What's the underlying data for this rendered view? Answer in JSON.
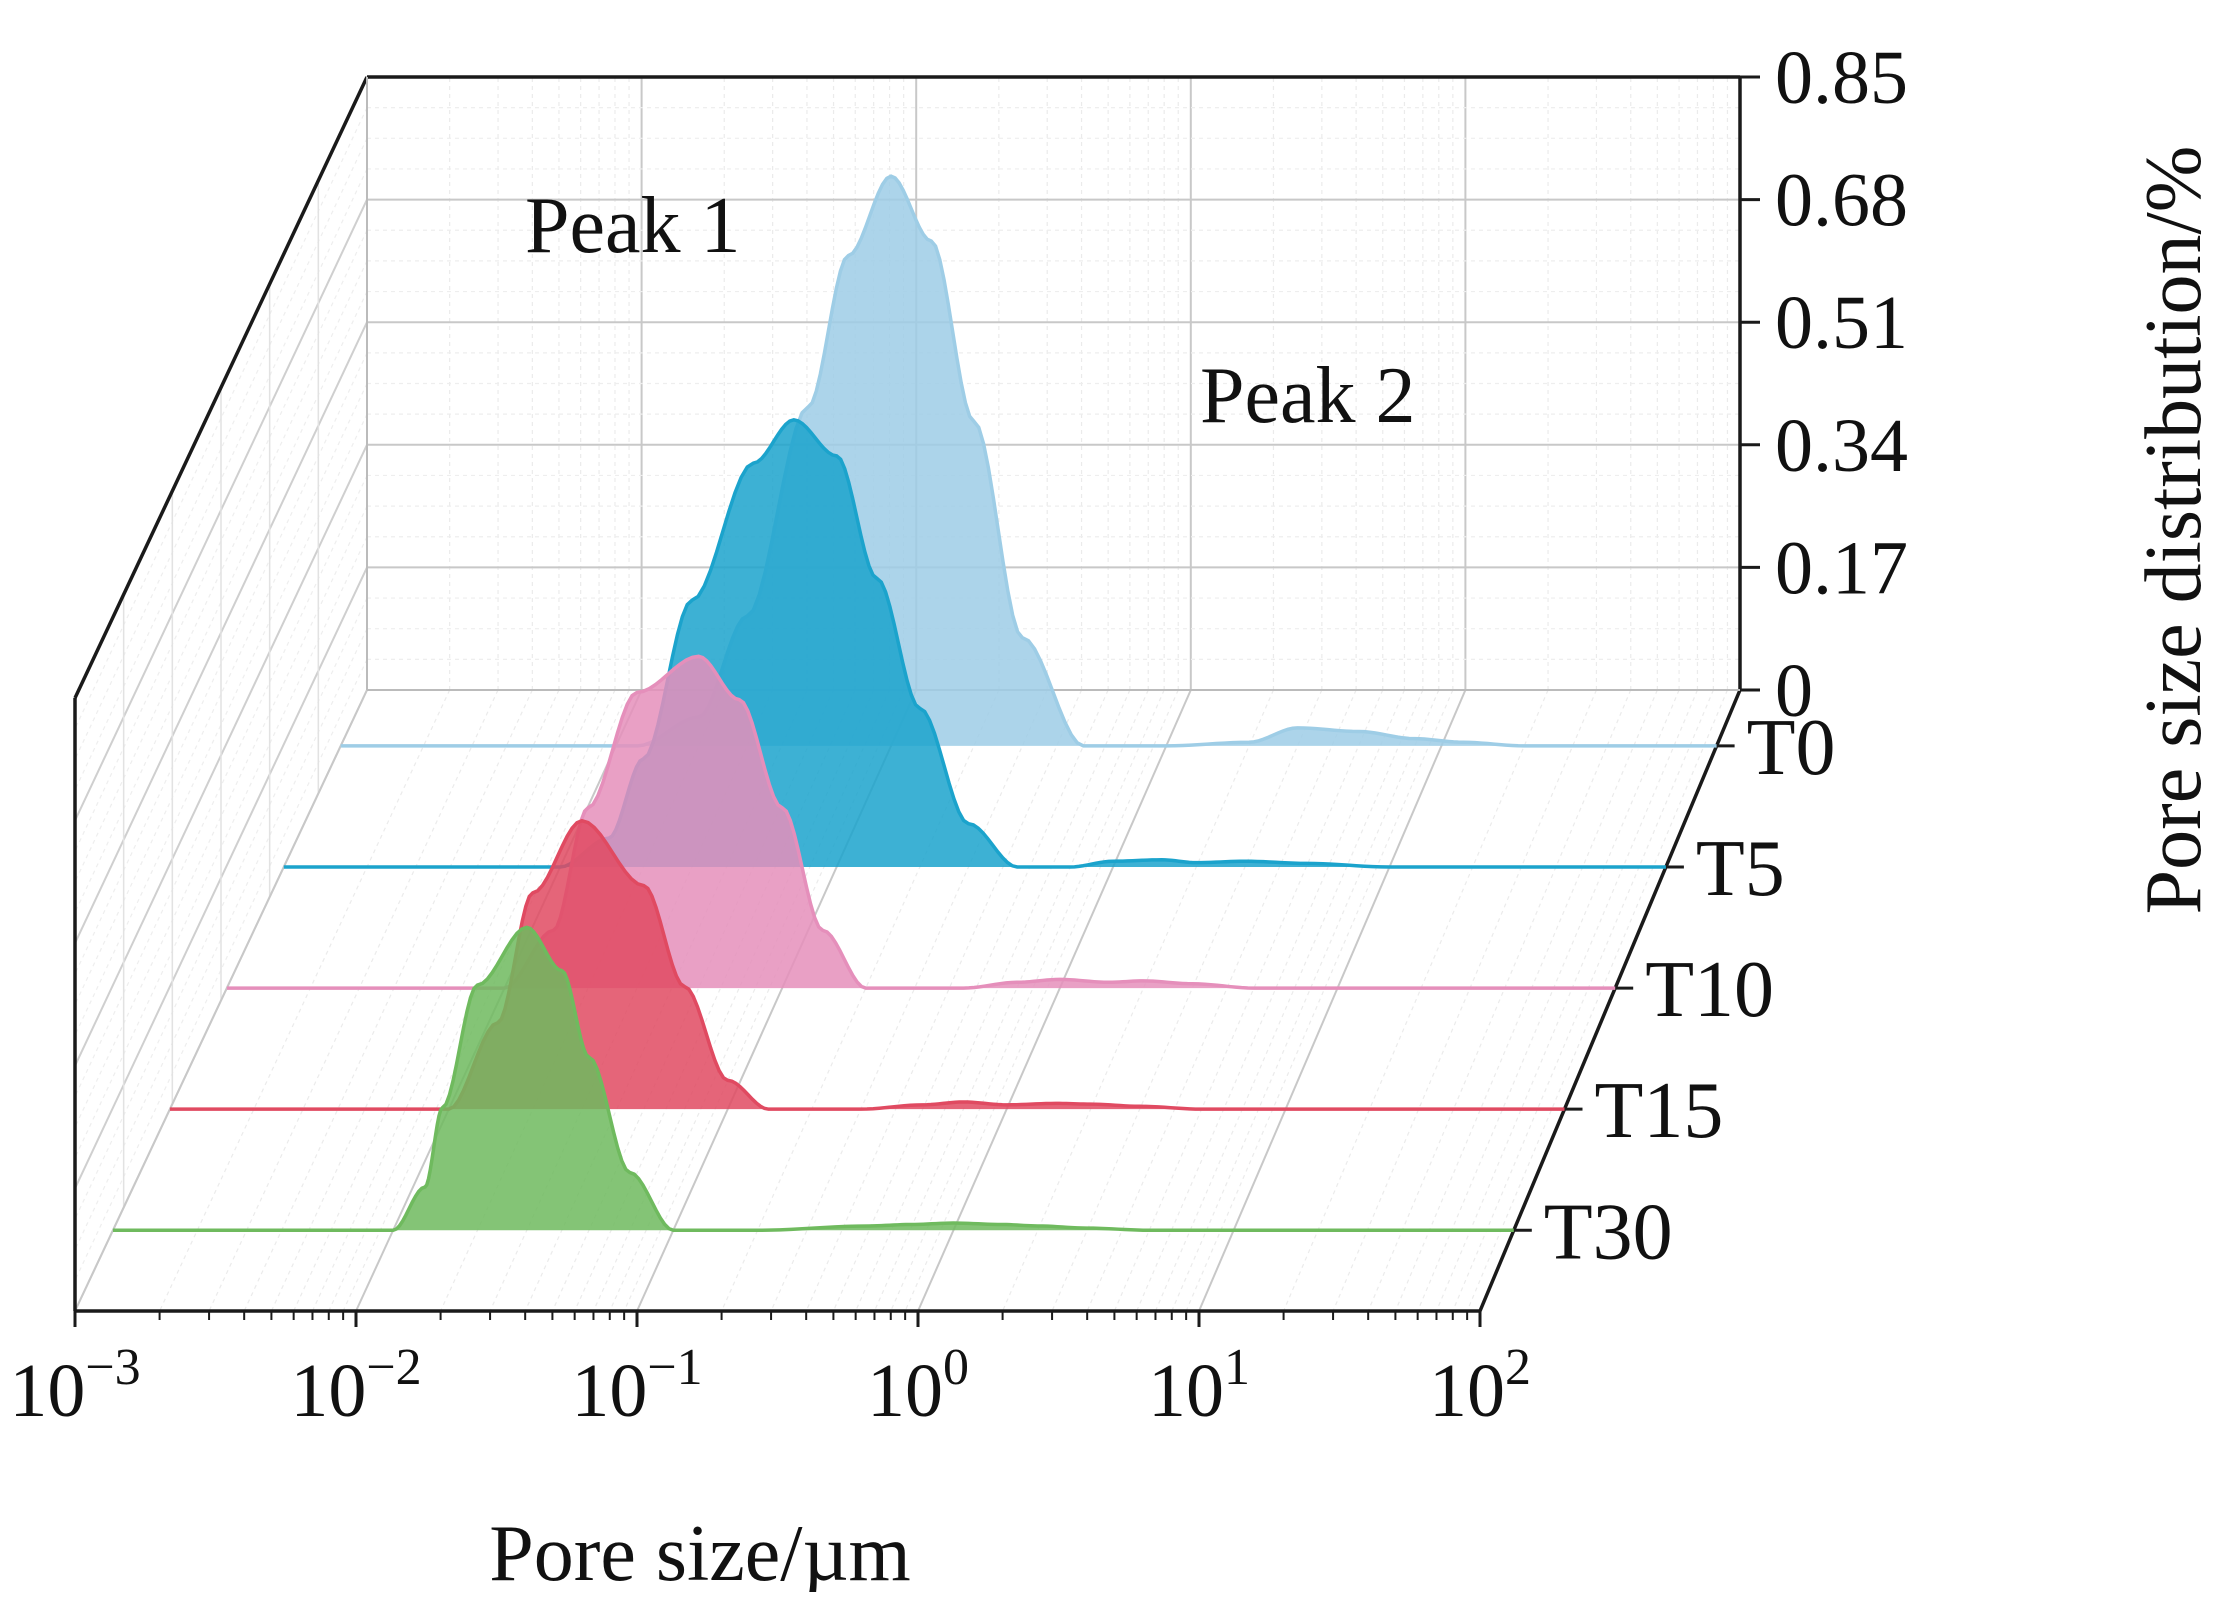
{
  "chart_data": {
    "type": "area",
    "subtype": "3d-waterfall",
    "xlabel": "Pore size/µm",
    "ylabel": "Pore size distribution/%",
    "x_scale": "log",
    "xlim": [
      0.001,
      100
    ],
    "ylim": [
      0,
      0.85
    ],
    "x_ticks": [
      {
        "value": 0.001,
        "base": "10",
        "exp": "−3"
      },
      {
        "value": 0.01,
        "base": "10",
        "exp": "−2"
      },
      {
        "value": 0.1,
        "base": "10",
        "exp": "−1"
      },
      {
        "value": 1,
        "base": "10",
        "exp": "0"
      },
      {
        "value": 10,
        "base": "10",
        "exp": "1"
      },
      {
        "value": 100,
        "base": "10",
        "exp": "2"
      }
    ],
    "y_ticks": [
      "0",
      "0.17",
      "0.34",
      "0.51",
      "0.68",
      "0.85"
    ],
    "grid": true,
    "annotations": [
      "Peak 1",
      "Peak 2"
    ],
    "series": [
      {
        "name": "T0",
        "color": "#9ecde6",
        "x": [
          0.012,
          0.02,
          0.03,
          0.05,
          0.07,
          0.1,
          0.14,
          0.2,
          0.3,
          0.5,
          0.7,
          1.0,
          2,
          3,
          5,
          8,
          12,
          20,
          40,
          100
        ],
        "y": [
          0,
          0.04,
          0.18,
          0.47,
          0.68,
          0.79,
          0.7,
          0.45,
          0.15,
          0,
          0,
          0,
          0.005,
          0.025,
          0.02,
          0.01,
          0.005,
          0,
          0,
          0
        ]
      },
      {
        "name": "T5",
        "color": "#1ba3cc",
        "x": [
          0.01,
          0.015,
          0.02,
          0.03,
          0.05,
          0.07,
          0.1,
          0.14,
          0.2,
          0.3,
          0.45,
          0.7,
          1.0,
          1.5,
          2,
          3,
          5,
          10,
          100
        ],
        "y": [
          0,
          0.04,
          0.15,
          0.37,
          0.56,
          0.62,
          0.57,
          0.4,
          0.22,
          0.06,
          0,
          0,
          0.008,
          0.01,
          0.006,
          0.008,
          0.005,
          0,
          0
        ]
      },
      {
        "name": "T10",
        "color": "#e58fbb",
        "x": [
          0.01,
          0.015,
          0.02,
          0.03,
          0.05,
          0.07,
          0.1,
          0.14,
          0.2,
          0.3,
          0.45,
          0.7,
          1.0,
          1.5,
          2,
          3,
          5,
          100
        ],
        "y": [
          0,
          0.08,
          0.25,
          0.41,
          0.46,
          0.4,
          0.25,
          0.08,
          0,
          0,
          0,
          0.008,
          0.012,
          0.008,
          0.01,
          0.006,
          0,
          0
        ]
      },
      {
        "name": "T15",
        "color": "#e04a61",
        "x": [
          0.01,
          0.015,
          0.02,
          0.03,
          0.05,
          0.07,
          0.1,
          0.14,
          0.2,
          0.3,
          0.5,
          0.7,
          1.0,
          1.5,
          2,
          3,
          5,
          100
        ],
        "y": [
          0,
          0.12,
          0.3,
          0.4,
          0.31,
          0.17,
          0.04,
          0,
          0,
          0,
          0.006,
          0.01,
          0.006,
          0.008,
          0.007,
          0.004,
          0,
          0
        ]
      },
      {
        "name": "T30",
        "color": "#6fba5e",
        "x": [
          0.01,
          0.013,
          0.015,
          0.02,
          0.03,
          0.04,
          0.05,
          0.07,
          0.1,
          0.2,
          0.5,
          0.7,
          1.0,
          1.5,
          2,
          3,
          5,
          100
        ],
        "y": [
          0,
          0.06,
          0.17,
          0.34,
          0.42,
          0.36,
          0.24,
          0.08,
          0,
          0,
          0.006,
          0.008,
          0.01,
          0.008,
          0.006,
          0.003,
          0,
          0
        ]
      }
    ]
  }
}
